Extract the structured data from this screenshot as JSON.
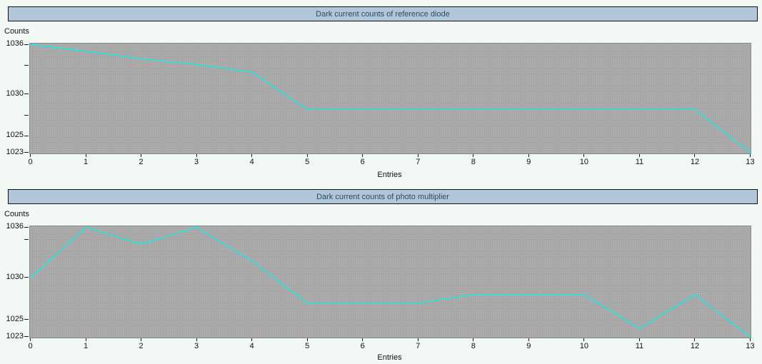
{
  "style": {
    "page_bg": "#f2f8f3",
    "title_bar_bg": "#b2c6d9",
    "title_bar_border": "#141414",
    "title_text_color": "#2d4b5f",
    "plot_bg": "#a7a7a7",
    "plot_border": "#8a8a8a",
    "line_color": "#41d8d4",
    "tick_color": "#1a1a1a",
    "axis_text_color": "#111111"
  },
  "chart_data": [
    {
      "type": "line",
      "title": "Dark current counts of reference diode",
      "xlabel": "Entries",
      "ylabel": "Counts",
      "x": [
        0,
        1,
        2,
        3,
        4,
        5,
        6,
        7,
        8,
        9,
        10,
        11,
        12,
        13
      ],
      "values": [
        1036,
        1035.2,
        1034.3,
        1033.6,
        1032.7,
        1028.2,
        1028.2,
        1028.2,
        1028.2,
        1028.2,
        1028.2,
        1028.2,
        1028.2,
        1023
      ],
      "xlim": [
        0,
        13
      ],
      "ylim": [
        1023,
        1036
      ],
      "xticks": [
        0,
        1,
        2,
        3,
        4,
        5,
        6,
        7,
        8,
        9,
        10,
        11,
        12,
        13
      ],
      "yticks": [
        {
          "value": 1036,
          "label": "1036"
        },
        {
          "value": 1033.5,
          "label": ""
        },
        {
          "value": 1030,
          "label": "1030"
        },
        {
          "value": 1027.5,
          "label": ""
        },
        {
          "value": 1025,
          "label": "1025"
        },
        {
          "value": 1023,
          "label": "1023"
        }
      ],
      "grid": false,
      "legend": null
    },
    {
      "type": "line",
      "title": "Dark current counts of photo multiplier",
      "xlabel": "Entries",
      "ylabel": "Counts",
      "x": [
        0,
        1,
        2,
        3,
        4,
        5,
        6,
        7,
        8,
        9,
        10,
        11,
        12,
        13
      ],
      "values": [
        1030,
        1036,
        1034,
        1036,
        1032,
        1027,
        1027,
        1027,
        1028,
        1028,
        1028,
        1024,
        1028,
        1023
      ],
      "xlim": [
        0,
        13
      ],
      "ylim": [
        1023,
        1036
      ],
      "xticks": [
        0,
        1,
        2,
        3,
        4,
        5,
        6,
        7,
        8,
        9,
        10,
        11,
        12,
        13
      ],
      "yticks": [
        {
          "value": 1036,
          "label": "1036"
        },
        {
          "value": 1034.5,
          "label": ""
        },
        {
          "value": 1030,
          "label": "1030"
        },
        {
          "value": 1025,
          "label": "1025"
        },
        {
          "value": 1023,
          "label": "1023"
        }
      ],
      "grid": false,
      "legend": null
    }
  ]
}
